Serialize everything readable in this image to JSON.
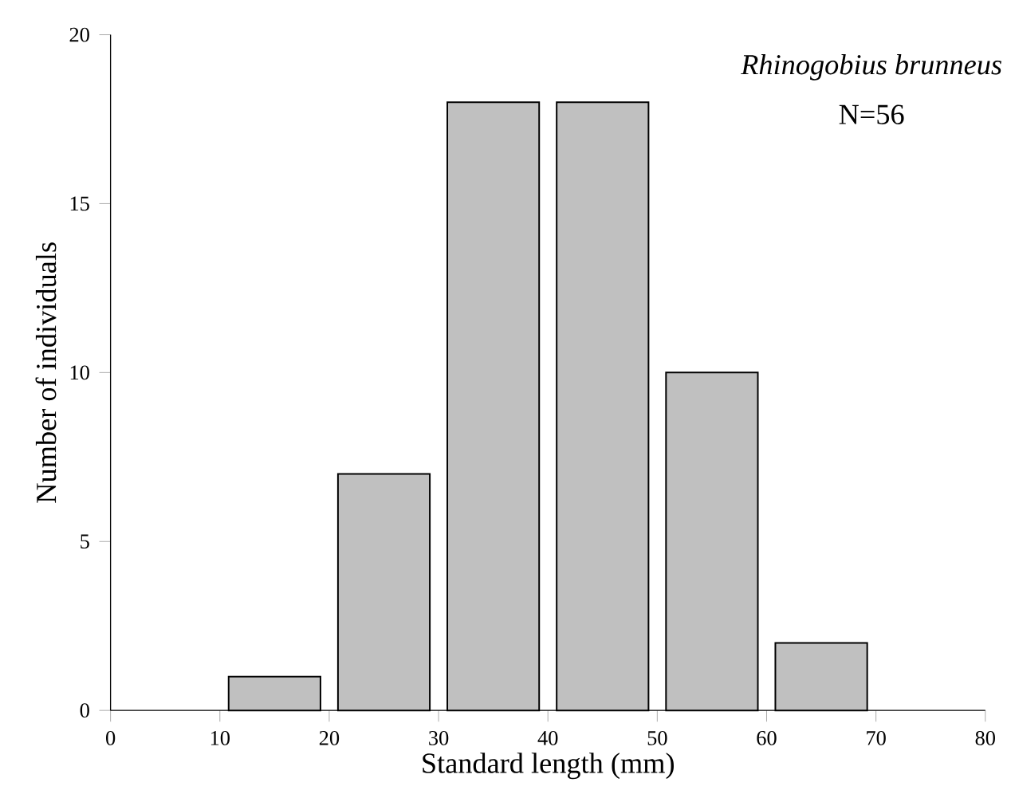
{
  "chart_data": {
    "type": "histogram",
    "bins": [
      10,
      20,
      30,
      40,
      50,
      60,
      70
    ],
    "values": [
      1,
      7,
      18,
      18,
      10,
      2
    ],
    "color": "#c0c0c0",
    "xlabel": "Standard length (mm)",
    "ylabel": "Number of individuals",
    "xlim": [
      0,
      80
    ],
    "xticks": [
      0,
      10,
      20,
      30,
      40,
      50,
      60,
      70,
      80
    ],
    "ylim": [
      0,
      20
    ],
    "yticks": [
      0,
      5,
      10,
      15,
      20
    ],
    "annotations": [
      "Rhinogobius brunneus",
      "N=56"
    ]
  }
}
